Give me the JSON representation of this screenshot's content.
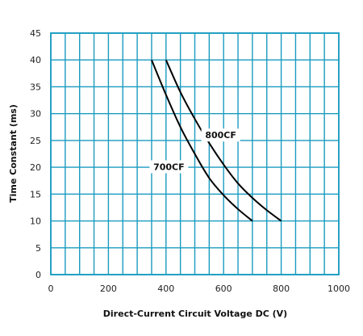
{
  "chart_data": {
    "type": "line",
    "title": "",
    "xlabel": "Direct-Current Circuit Voltage DC (V)",
    "ylabel": "Time Constant (ms)",
    "xlim": [
      0,
      1000
    ],
    "ylim": [
      0,
      45
    ],
    "x_ticks": [
      0,
      200,
      400,
      600,
      800,
      1000
    ],
    "y_ticks": [
      0,
      5,
      10,
      15,
      20,
      25,
      30,
      35,
      40,
      45
    ],
    "grid": true,
    "legend": "none",
    "series": [
      {
        "name": "700CF",
        "x": [
          350,
          400,
          450,
          500,
          550,
          600,
          650,
          700
        ],
        "y": [
          40,
          33.5,
          27.5,
          22.5,
          18,
          14.8,
          12.2,
          10
        ]
      },
      {
        "name": "800CF",
        "x": [
          400,
          450,
          500,
          550,
          600,
          650,
          700,
          750,
          800
        ],
        "y": [
          40,
          34,
          29,
          24.5,
          20.5,
          17,
          14.3,
          12,
          10
        ]
      }
    ]
  },
  "colors": {
    "grid": "#1a9bc0",
    "curve": "#000000",
    "text": "#111111"
  }
}
